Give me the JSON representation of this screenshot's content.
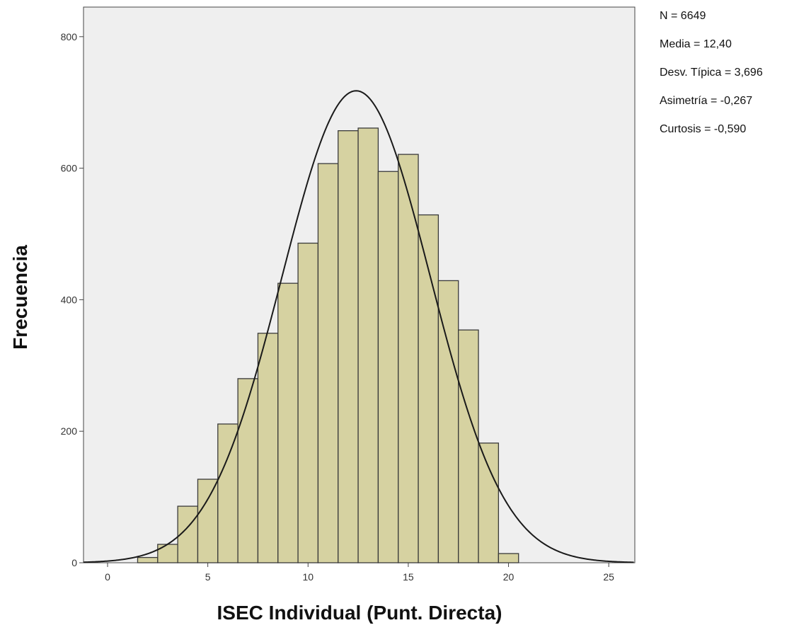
{
  "chart_data": {
    "type": "bar",
    "title": "",
    "xlabel": "ISEC Individual (Punt. Directa)",
    "ylabel": "Frecuencia",
    "xlim": [
      -1.2,
      26.3
    ],
    "ylim": [
      0,
      845
    ],
    "x_ticks": [
      0,
      5,
      10,
      15,
      20,
      25
    ],
    "y_ticks": [
      0,
      200,
      400,
      600,
      800
    ],
    "grid": false,
    "bins": [
      {
        "center": 2,
        "value": 8
      },
      {
        "center": 3,
        "value": 28
      },
      {
        "center": 4,
        "value": 86
      },
      {
        "center": 5,
        "value": 127
      },
      {
        "center": 6,
        "value": 211
      },
      {
        "center": 7,
        "value": 280
      },
      {
        "center": 8,
        "value": 349
      },
      {
        "center": 9,
        "value": 425
      },
      {
        "center": 10,
        "value": 486
      },
      {
        "center": 11,
        "value": 607
      },
      {
        "center": 12,
        "value": 657
      },
      {
        "center": 13,
        "value": 661
      },
      {
        "center": 14,
        "value": 595
      },
      {
        "center": 15,
        "value": 621
      },
      {
        "center": 16,
        "value": 529
      },
      {
        "center": 17,
        "value": 429
      },
      {
        "center": 18,
        "value": 354
      },
      {
        "center": 19,
        "value": 182
      },
      {
        "center": 20,
        "value": 14
      }
    ],
    "normal_curve": {
      "mean": 12.4,
      "sd": 3.696,
      "n": 6649,
      "bin_width": 1
    },
    "stats_text": [
      "N = 6649",
      "Media = 12,40",
      "Desv. Típica = 3,696",
      "Asimetría = -0,267",
      "Curtosis = -0,590"
    ],
    "colors": {
      "bar_fill": "#d6d2a1",
      "bar_stroke": "#3a3a3a",
      "plot_background": "#efefef",
      "curve": "#1a1a1a"
    }
  }
}
